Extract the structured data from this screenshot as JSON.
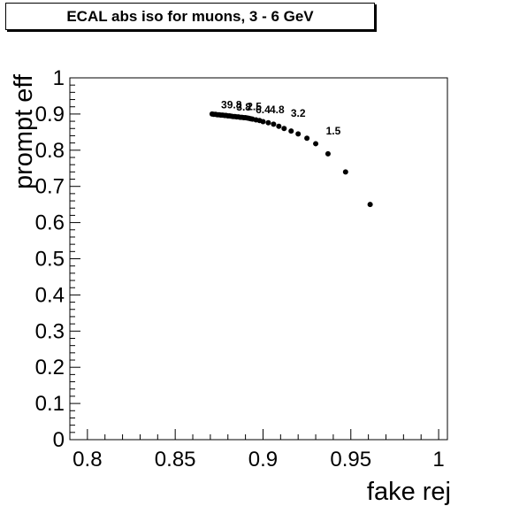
{
  "chart_data": {
    "type": "scatter",
    "title": "ECAL abs iso for muons, 3 - 6 GeV",
    "xlabel": "fake rej",
    "ylabel": "prompt eff",
    "xlim": [
      0.79,
      1.005
    ],
    "ylim": [
      0,
      1
    ],
    "xticks": [
      {
        "v": 0.8,
        "label": "0.8"
      },
      {
        "v": 0.85,
        "label": "0.85"
      },
      {
        "v": 0.9,
        "label": "0.9"
      },
      {
        "v": 0.95,
        "label": "0.95"
      },
      {
        "v": 1.0,
        "label": "1"
      }
    ],
    "yticks": [
      {
        "v": 0,
        "label": "0"
      },
      {
        "v": 0.1,
        "label": "0.1"
      },
      {
        "v": 0.2,
        "label": "0.2"
      },
      {
        "v": 0.3,
        "label": "0.3"
      },
      {
        "v": 0.4,
        "label": "0.4"
      },
      {
        "v": 0.5,
        "label": "0.5"
      },
      {
        "v": 0.6,
        "label": "0.6"
      },
      {
        "v": 0.7,
        "label": "0.7"
      },
      {
        "v": 0.8,
        "label": "0.8"
      },
      {
        "v": 0.9,
        "label": "0.9"
      },
      {
        "v": 1.0,
        "label": "1"
      }
    ],
    "grid": false,
    "points": [
      {
        "x": 0.871,
        "y": 0.9
      },
      {
        "x": 0.872,
        "y": 0.899
      },
      {
        "x": 0.873,
        "y": 0.899
      },
      {
        "x": 0.874,
        "y": 0.898
      },
      {
        "x": 0.875,
        "y": 0.898
      },
      {
        "x": 0.876,
        "y": 0.897
      },
      {
        "x": 0.877,
        "y": 0.897
      },
      {
        "x": 0.878,
        "y": 0.896
      },
      {
        "x": 0.879,
        "y": 0.896
      },
      {
        "x": 0.88,
        "y": 0.895
      },
      {
        "x": 0.881,
        "y": 0.895
      },
      {
        "x": 0.882,
        "y": 0.894
      },
      {
        "x": 0.883,
        "y": 0.893
      },
      {
        "x": 0.884,
        "y": 0.893
      },
      {
        "x": 0.885,
        "y": 0.892
      },
      {
        "x": 0.886,
        "y": 0.892
      },
      {
        "x": 0.887,
        "y": 0.891
      },
      {
        "x": 0.888,
        "y": 0.891
      },
      {
        "x": 0.889,
        "y": 0.89
      },
      {
        "x": 0.89,
        "y": 0.89
      },
      {
        "x": 0.891,
        "y": 0.889
      },
      {
        "x": 0.892,
        "y": 0.888
      },
      {
        "x": 0.893,
        "y": 0.887
      },
      {
        "x": 0.894,
        "y": 0.886
      },
      {
        "x": 0.896,
        "y": 0.884
      },
      {
        "x": 0.898,
        "y": 0.882
      },
      {
        "x": 0.9,
        "y": 0.879
      },
      {
        "x": 0.903,
        "y": 0.876
      },
      {
        "x": 0.906,
        "y": 0.872
      },
      {
        "x": 0.909,
        "y": 0.866
      },
      {
        "x": 0.912,
        "y": 0.86
      },
      {
        "x": 0.916,
        "y": 0.853
      },
      {
        "x": 0.92,
        "y": 0.845
      },
      {
        "x": 0.925,
        "y": 0.833
      },
      {
        "x": 0.93,
        "y": 0.818
      },
      {
        "x": 0.937,
        "y": 0.79
      },
      {
        "x": 0.947,
        "y": 0.74
      },
      {
        "x": 0.961,
        "y": 0.65
      }
    ],
    "annotations": [
      {
        "text": "39.8",
        "x": 0.882,
        "y": 0.916
      },
      {
        "text": "3.8",
        "x": 0.889,
        "y": 0.909
      },
      {
        "text": "2.5",
        "x": 0.895,
        "y": 0.911
      },
      {
        "text": "6.4",
        "x": 0.9,
        "y": 0.902
      },
      {
        "text": "4.8",
        "x": 0.908,
        "y": 0.902
      },
      {
        "text": "3.2",
        "x": 0.92,
        "y": 0.893
      },
      {
        "text": "1.5",
        "x": 0.94,
        "y": 0.843
      }
    ]
  }
}
